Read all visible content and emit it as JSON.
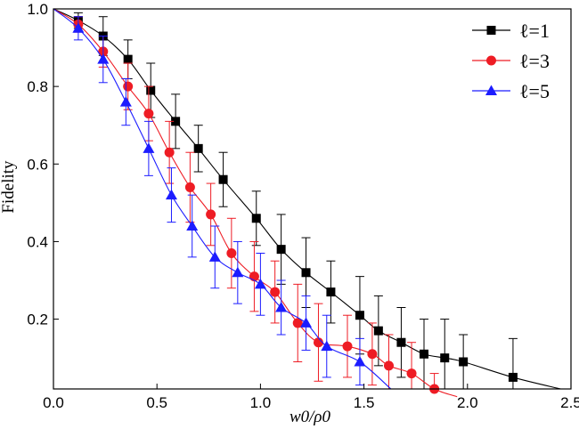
{
  "chart_data": {
    "type": "line",
    "xlabel": "w0/ρ0",
    "ylabel": "Fidelity",
    "xlim": [
      0,
      2.5
    ],
    "ylim": [
      0.02,
      1.0
    ],
    "xticks": [
      "0.0",
      "0.5",
      "1.0",
      "1.5",
      "2.0",
      "2.5"
    ],
    "yticks": [
      "0.2",
      "0.4",
      "0.6",
      "0.8",
      "1.0"
    ],
    "grid": false,
    "legend_position": "top-right",
    "series": [
      {
        "name": "ℓ=1",
        "color": "#000000",
        "marker": "square",
        "x": [
          0.0,
          0.12,
          0.24,
          0.36,
          0.47,
          0.59,
          0.7,
          0.82,
          0.98,
          1.1,
          1.22,
          1.34,
          1.48,
          1.57,
          1.68,
          1.79,
          1.89,
          1.98,
          2.22,
          2.45
        ],
        "y": [
          1.0,
          0.97,
          0.93,
          0.87,
          0.79,
          0.71,
          0.64,
          0.56,
          0.46,
          0.38,
          0.32,
          0.27,
          0.21,
          0.17,
          0.14,
          0.11,
          0.1,
          0.09,
          0.05,
          0.02
        ],
        "err": [
          0.0,
          0.02,
          0.05,
          0.05,
          0.07,
          0.07,
          0.06,
          0.07,
          0.07,
          0.09,
          0.09,
          0.08,
          0.1,
          0.09,
          0.09,
          0.09,
          0.1,
          0.07,
          0.1,
          0.0
        ]
      },
      {
        "name": "ℓ=3",
        "color": "#ee1c24",
        "marker": "circle",
        "x": [
          0.0,
          0.12,
          0.24,
          0.36,
          0.46,
          0.56,
          0.66,
          0.76,
          0.86,
          0.97,
          1.07,
          1.18,
          1.28,
          1.42,
          1.54,
          1.62,
          1.73,
          1.84,
          1.95
        ],
        "y": [
          1.0,
          0.96,
          0.89,
          0.8,
          0.73,
          0.63,
          0.54,
          0.47,
          0.37,
          0.31,
          0.27,
          0.19,
          0.14,
          0.13,
          0.11,
          0.08,
          0.06,
          0.02,
          0.0
        ],
        "err": [
          0.0,
          0.02,
          0.04,
          0.06,
          0.07,
          0.08,
          0.09,
          0.08,
          0.09,
          0.09,
          0.08,
          0.1,
          0.1,
          0.08,
          0.08,
          0.08,
          0.08,
          0.04,
          0.0
        ]
      },
      {
        "name": "ℓ=5",
        "color": "#1c1cff",
        "marker": "triangle",
        "x": [
          0.0,
          0.12,
          0.24,
          0.35,
          0.46,
          0.57,
          0.67,
          0.78,
          0.89,
          1.0,
          1.1,
          1.22,
          1.32,
          1.48,
          1.63
        ],
        "y": [
          1.0,
          0.95,
          0.87,
          0.76,
          0.64,
          0.52,
          0.44,
          0.36,
          0.32,
          0.29,
          0.23,
          0.19,
          0.13,
          0.09,
          0.02
        ],
        "err": [
          0.0,
          0.03,
          0.06,
          0.06,
          0.07,
          0.07,
          0.08,
          0.08,
          0.08,
          0.08,
          0.07,
          0.07,
          0.08,
          0.06,
          0.0
        ]
      }
    ]
  }
}
